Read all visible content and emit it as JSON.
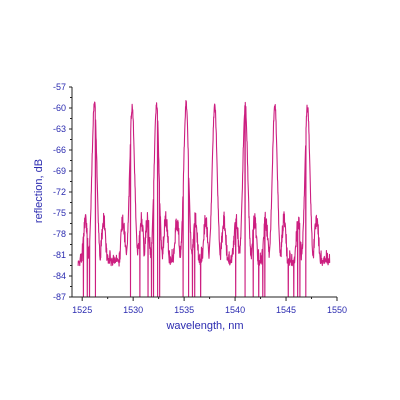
{
  "chart_data": {
    "type": "line",
    "title": "",
    "xlabel": "wavelength, nm",
    "ylabel": "reflection, dB",
    "xlim": [
      1524,
      1550
    ],
    "ylim": [
      -87,
      -57
    ],
    "x_ticks": [
      1525,
      1530,
      1535,
      1540,
      1545,
      1550
    ],
    "y_ticks": [
      -87,
      -84,
      -81,
      -78,
      -75,
      -72,
      -69,
      -66,
      -63,
      -60,
      -57
    ],
    "grid": false,
    "legend": "none",
    "series": [
      {
        "color": "#cc1f80",
        "peaks": [
          {
            "x": 1526.2,
            "y": -59.2
          },
          {
            "x": 1529.9,
            "y": -59.9
          },
          {
            "x": 1532.3,
            "y": -59.8
          },
          {
            "x": 1535.2,
            "y": -59.4
          },
          {
            "x": 1538.0,
            "y": -59.6
          },
          {
            "x": 1541.0,
            "y": -59.7
          },
          {
            "x": 1543.9,
            "y": -59.6
          },
          {
            "x": 1547.1,
            "y": -59.7
          }
        ],
        "noise_floor": -83
      }
    ]
  }
}
